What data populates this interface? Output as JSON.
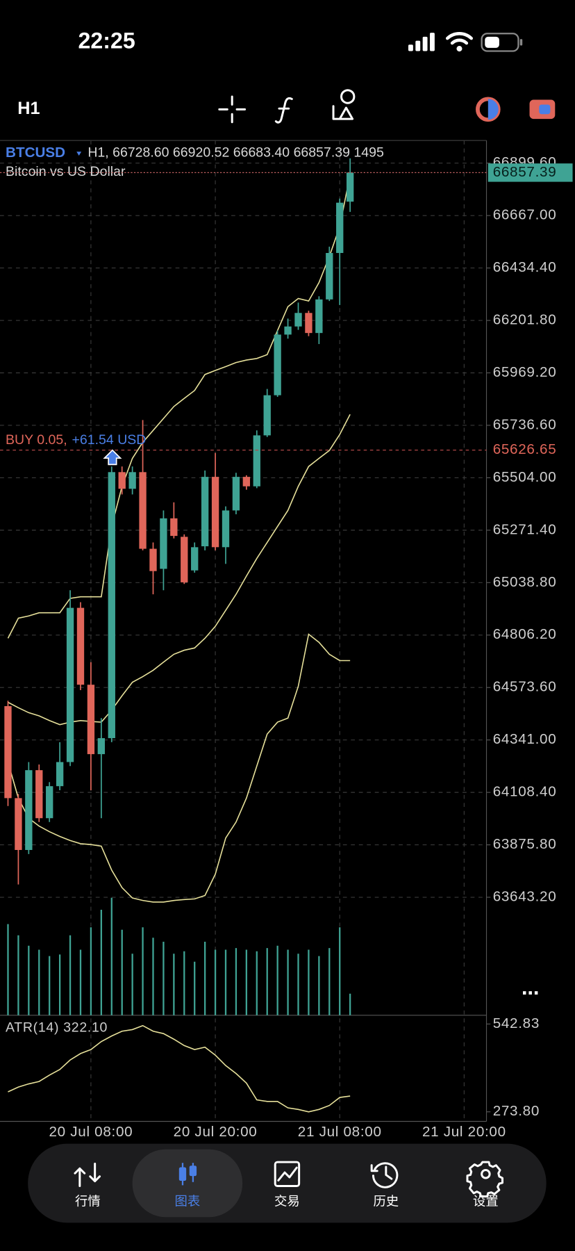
{
  "status_bar": {
    "time": "22:25"
  },
  "toolbar": {
    "timeframe": "H1"
  },
  "chart_data": {
    "type": "candlestick",
    "symbol": "BTCUSD",
    "info": "H1, 66728.60 66920.52 66683.40 66857.39 1495",
    "description": "Bitcoin vs US Dollar",
    "categories": [
      null,
      null,
      null,
      null,
      null,
      null,
      null,
      null,
      "20 Jul 08:00",
      null,
      null,
      null,
      null,
      null,
      null,
      null,
      null,
      null,
      null,
      null,
      "20 Jul 20:00",
      null,
      null,
      null,
      null,
      null,
      null,
      null,
      null,
      null,
      null,
      null,
      "21 Jul 08:00",
      null,
      null,
      null,
      null,
      null,
      null,
      null,
      null,
      null,
      null,
      null,
      "21 Jul 20:00"
    ],
    "open": [
      64491,
      64083,
      63853,
      64207,
      63994,
      64136,
      64243,
      64927,
      64586,
      64278,
      64349,
      65529,
      65455,
      65529,
      65189,
      65100,
      65324,
      65242,
      65093,
      65200,
      65508,
      65196,
      65359,
      65508,
      65466,
      65692,
      65870,
      66139,
      66175,
      66235,
      66146,
      66295,
      66501,
      66728.6,
      null,
      null,
      null,
      null,
      null,
      null,
      null,
      null,
      null,
      null,
      null
    ],
    "high": [
      64515,
      64101,
      64243,
      64232,
      64154,
      64331,
      65005,
      64952,
      64686,
      64438,
      65554,
      65554,
      65554,
      65760,
      65217,
      65359,
      65395,
      65253,
      65217,
      65536,
      65614,
      65377,
      65526,
      65515,
      65714,
      65898,
      66157,
      66210,
      66281,
      66245,
      66309,
      66529,
      66742,
      66920.52,
      null,
      null,
      null,
      null,
      null,
      null,
      null,
      null,
      null,
      null,
      null
    ],
    "low": [
      64048,
      63700,
      63835,
      63977,
      63977,
      64118,
      64225,
      64562,
      64118,
      63994,
      64331,
      65430,
      65430,
      65182,
      64987,
      65005,
      65235,
      65033,
      65083,
      65182,
      65182,
      65122,
      65342,
      65451,
      65458,
      65685,
      65863,
      66121,
      66160,
      66132,
      66097,
      66288,
      66270,
      66683.4,
      null,
      null,
      null,
      null,
      null,
      null,
      null,
      null,
      null,
      null,
      null
    ],
    "close": [
      64083,
      63853,
      64207,
      63994,
      64136,
      64243,
      64927,
      64586,
      64278,
      64349,
      65529,
      65455,
      65529,
      65189,
      65090,
      65324,
      65246,
      65040,
      65196,
      65508,
      65196,
      65359,
      65508,
      65466,
      65692,
      65870,
      66139,
      66175,
      66235,
      66146,
      66295,
      66501,
      66724,
      66857.39,
      null,
      null,
      null,
      null,
      null,
      null,
      null,
      null,
      null,
      null,
      null
    ],
    "volume": [
      6316,
      5540,
      4820,
      4543,
      4100,
      4210,
      5540,
      4543,
      6094,
      7313,
      8144,
      5928,
      4266,
      6094,
      5374,
      5097,
      4266,
      4432,
      3712,
      5097,
      4543,
      4543,
      4654,
      4543,
      4432,
      4654,
      4820,
      4543,
      4266,
      4543,
      4100,
      4654,
      6094,
      1495,
      null,
      null,
      null,
      null,
      null,
      null,
      null,
      null,
      null,
      null,
      null
    ],
    "bands": {
      "upper": [
        64792,
        64881,
        64891,
        64905,
        64905,
        64905,
        64969,
        64976,
        64976,
        64976,
        65288,
        65466,
        65590,
        65661,
        65714,
        65767,
        65820,
        65856,
        65891,
        65962,
        65980,
        65997,
        66015,
        66026,
        66033,
        66050,
        66157,
        66263,
        66299,
        66288,
        66370,
        66486,
        66618,
        66848,
        null,
        null,
        null,
        null,
        null,
        null,
        null,
        null,
        null,
        null,
        null
      ],
      "middle": [
        64508,
        64484,
        64462,
        64448,
        64427,
        64409,
        64420,
        64427,
        64423,
        64420,
        64473,
        64537,
        64597,
        64622,
        64650,
        64686,
        64721,
        64739,
        64749,
        64792,
        64845,
        64916,
        64987,
        65068,
        65146,
        65217,
        65288,
        65359,
        65466,
        65554,
        65590,
        65625,
        65696,
        65785,
        null,
        null,
        null,
        null,
        null,
        null,
        null,
        null,
        null,
        null,
        null
      ],
      "lower": [
        64243,
        64083,
        63994,
        63959,
        63934,
        63913,
        63895,
        63881,
        63877,
        63870,
        63764,
        63686,
        63640,
        63629,
        63622,
        63622,
        63629,
        63633,
        63636,
        63651,
        63746,
        63906,
        63977,
        64083,
        64225,
        64367,
        64420,
        64438,
        64579,
        64810,
        64774,
        64721,
        64693,
        64693,
        null,
        null,
        null,
        null,
        null,
        null,
        null,
        null,
        null,
        null,
        null
      ]
    },
    "up_color": "#3fa394",
    "down_color": "#e0665a",
    "band_color": "#e6e09a",
    "volume_color": "#3fa394",
    "ylim": [
      63120,
      67000
    ],
    "yticks": [
      {
        "value": 66899.6,
        "label": "66899.60"
      },
      {
        "value": 66667,
        "label": "66667.00"
      },
      {
        "value": 66434.4,
        "label": "66434.40"
      },
      {
        "value": 66201.8,
        "label": "66201.80"
      },
      {
        "value": 65969.2,
        "label": "65969.20"
      },
      {
        "value": 65736.6,
        "label": "65736.60"
      },
      {
        "value": 65504,
        "label": "65504.00"
      },
      {
        "value": 65271.4,
        "label": "65271.40"
      },
      {
        "value": 65038.8,
        "label": "65038.80"
      },
      {
        "value": 64806.2,
        "label": "64806.20"
      },
      {
        "value": 64573.6,
        "label": "64573.60"
      },
      {
        "value": 64341,
        "label": "64341.00"
      },
      {
        "value": 64108.4,
        "label": "64108.40"
      },
      {
        "value": 63875.8,
        "label": "63875.80"
      },
      {
        "value": 63643.2,
        "label": "63643.20"
      }
    ],
    "grid": true,
    "last_price": 66857.39,
    "trade": {
      "side": "BUY 0.05,",
      "profit": "+61.54 USD",
      "price": 65626.65
    },
    "vlim": [
      0,
      8300
    ],
    "atr_label": "ATR(14) 322.10",
    "atr": [
      334.9,
      349.6,
      359.4,
      366.7,
      386.3,
      403.4,
      432.7,
      452.3,
      464.5,
      489.0,
      506.1,
      520.8,
      525.7,
      537.9,
      520.8,
      513.5,
      496.3,
      476.8,
      464.5,
      471.9,
      447.4,
      415.6,
      391.2,
      361.8,
      310.5,
      305.6,
      305.6,
      286.0,
      281.1,
      273.8,
      281.1,
      293.3,
      317.8,
      322.1,
      null,
      null,
      null,
      null,
      null,
      null,
      null,
      null,
      null,
      null,
      null
    ],
    "atr_ylim": [
      244.5,
      569.7
    ],
    "atr_yticks": [
      542.83,
      {
        "value": 273.8,
        "label": "273.80"
      }
    ]
  },
  "nav": {
    "items": [
      "行情",
      "图表",
      "交易",
      "历史",
      "设置"
    ],
    "active": 1
  }
}
